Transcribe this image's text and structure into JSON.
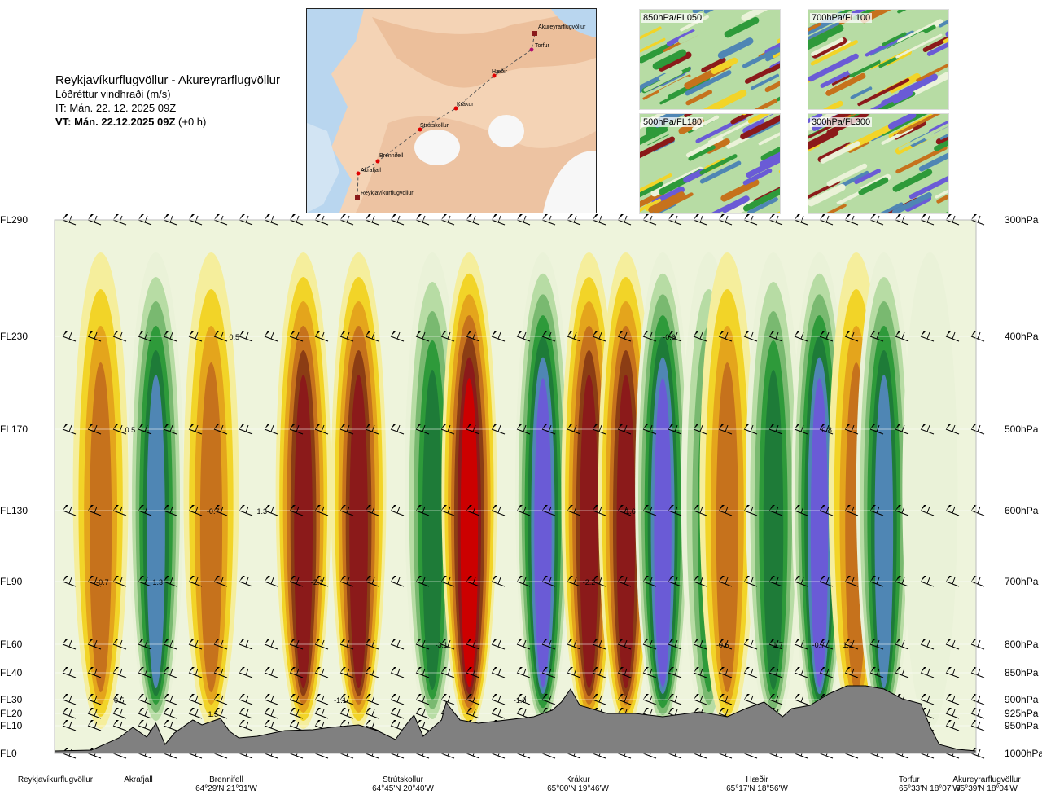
{
  "header": {
    "route": "Reykjavíkurflugvöllur - Akureyrarflugvöllur",
    "quantity": "Lóðréttur vindhraði (m/s)",
    "issue_time": "IT: Mán. 22. 12. 2025 09Z",
    "valid_time_bold": "VT: Mán. 22.12.2025 09Z",
    "valid_offset": "(+0 h)"
  },
  "route_map": {
    "points": [
      {
        "name": "Akureyrarflugvöllur"
      },
      {
        "name": "Torfur"
      },
      {
        "name": "Hæðir"
      },
      {
        "name": "Krákur"
      },
      {
        "name": "Strútskollur"
      },
      {
        "name": "Brennifell"
      },
      {
        "name": "Akrafjall"
      },
      {
        "name": "Reykjavíkurflugvöllur"
      }
    ]
  },
  "thumbnails": [
    {
      "label": "850hPa/FL050"
    },
    {
      "label": "700hPa/FL100"
    },
    {
      "label": "500hPa/FL180"
    },
    {
      "label": "300hPa/FL300"
    }
  ],
  "chart_data": {
    "type": "heatmap",
    "title": "Reykjavíkurflugvöllur - Akureyrarflugvöllur",
    "subtitle": "Lóðréttur vindhraði (m/s)",
    "y_left_labels": [
      "FL290",
      "FL230",
      "FL170",
      "FL130",
      "FL90",
      "FL60",
      "FL40",
      "FL30",
      "FL20",
      "FL10",
      "FL0"
    ],
    "y_right_labels": [
      "300hPa",
      "400hPa",
      "500hPa",
      "600hPa",
      "700hPa",
      "800hPa",
      "850hPa",
      "900hPa",
      "925hPa",
      "950hPa",
      "1000hPa"
    ],
    "x_locations": [
      {
        "name": "Reykjavíkurflugvöllur",
        "coord": ""
      },
      {
        "name": "Akrafjall",
        "coord": ""
      },
      {
        "name": "Brennifell",
        "coord": "64°29'N 21°31'W"
      },
      {
        "name": "Strútskollur",
        "coord": "64°45'N 20°40'W"
      },
      {
        "name": "Krákur",
        "coord": "65°00'N 19°46'W"
      },
      {
        "name": "Hæðir",
        "coord": "65°17'N 18°56'W"
      },
      {
        "name": "Torfur",
        "coord": "65°33'N 18°07'W"
      },
      {
        "name": "Akureyrarflugvöllur",
        "coord": "65°39'N 18°04'W"
      }
    ],
    "x_range": [
      0,
      1
    ],
    "y_range_hpa": [
      1000,
      300
    ],
    "bands": [
      {
        "x": 0.05,
        "v": -0.7
      },
      {
        "x": 0.11,
        "v": 1.3
      },
      {
        "x": 0.17,
        "v": -0.7
      },
      {
        "x": 0.27,
        "v": -2.1
      },
      {
        "x": 0.33,
        "v": -2.1
      },
      {
        "x": 0.41,
        "v": 0.9
      },
      {
        "x": 0.45,
        "v": -3.1
      },
      {
        "x": 0.53,
        "v": 1.5
      },
      {
        "x": 0.58,
        "v": -2.2
      },
      {
        "x": 0.62,
        "v": -2.2
      },
      {
        "x": 0.66,
        "v": 1.6
      },
      {
        "x": 0.71,
        "v": 0.6
      },
      {
        "x": 0.73,
        "v": -0.6
      },
      {
        "x": 0.78,
        "v": 0.9
      },
      {
        "x": 0.83,
        "v": 1.7
      },
      {
        "x": 0.87,
        "v": -0.7
      },
      {
        "x": 0.9,
        "v": 1.2
      },
      {
        "x": 0.95,
        "v": 0.1
      }
    ],
    "annotations": [
      {
        "text": "0.5",
        "x": 0.195,
        "hpa": 400
      },
      {
        "text": "-0.6",
        "x": 0.667,
        "hpa": 400
      },
      {
        "text": "0.5",
        "x": 0.082,
        "hpa": 500
      },
      {
        "text": "0.8",
        "x": 0.838,
        "hpa": 500
      },
      {
        "text": "-0.7",
        "x": 0.172,
        "hpa": 600
      },
      {
        "text": "1.3",
        "x": 0.225,
        "hpa": 600
      },
      {
        "text": "1.6",
        "x": 0.625,
        "hpa": 600
      },
      {
        "text": "-0.7",
        "x": 0.052,
        "hpa": 700
      },
      {
        "text": "1.3",
        "x": 0.112,
        "hpa": 700
      },
      {
        "text": "-2.1",
        "x": 0.285,
        "hpa": 700
      },
      {
        "text": "-2.2",
        "x": 0.58,
        "hpa": 700
      },
      {
        "text": "-3.1",
        "x": 0.42,
        "hpa": 800
      },
      {
        "text": "-0.6",
        "x": 0.725,
        "hpa": 800
      },
      {
        "text": "1.7",
        "x": 0.785,
        "hpa": 800
      },
      {
        "text": "-0.7",
        "x": 0.829,
        "hpa": 800
      },
      {
        "text": "1.2",
        "x": 0.861,
        "hpa": 800
      },
      {
        "text": "0.5",
        "x": 0.07,
        "hpa": 900
      },
      {
        "text": "-1.1",
        "x": 0.31,
        "hpa": 900
      },
      {
        "text": "-1.0",
        "x": 0.505,
        "hpa": 900
      },
      {
        "text": "1.5",
        "x": 0.172,
        "hpa": 925
      }
    ],
    "color_scale": [
      {
        "v": -3.0,
        "color": "#cc0000"
      },
      {
        "v": -1.5,
        "color": "#8b1a1a"
      },
      {
        "v": -0.8,
        "color": "#8b3d14"
      },
      {
        "v": -0.5,
        "color": "#c6721c"
      },
      {
        "v": -0.3,
        "color": "#e4a51c"
      },
      {
        "v": -0.15,
        "color": "#f2d428"
      },
      {
        "v": -0.05,
        "color": "#f5ee9c"
      },
      {
        "v": 0.05,
        "color": "#eaf2d8"
      },
      {
        "v": 0.15,
        "color": "#b7dca4"
      },
      {
        "v": 0.3,
        "color": "#79b970"
      },
      {
        "v": 0.5,
        "color": "#2e9a3a"
      },
      {
        "v": 0.8,
        "color": "#1e7b38"
      },
      {
        "v": 1.1,
        "color": "#4f86b4"
      },
      {
        "v": 1.4,
        "color": "#6a5bd6"
      }
    ],
    "terrain_color": "#808080"
  }
}
